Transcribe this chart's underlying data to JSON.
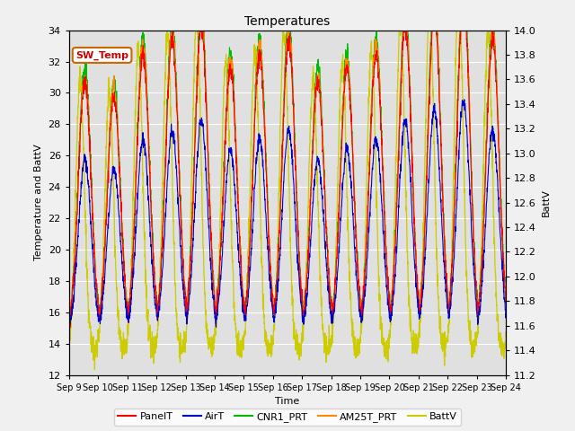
{
  "title": "Temperatures",
  "xlabel": "Time",
  "ylabel_left": "Temperature and BattV",
  "ylabel_right": "BattV",
  "x_tick_labels": [
    "Sep 9",
    "Sep 10",
    "Sep 11",
    "Sep 12",
    "Sep 13",
    "Sep 14",
    "Sep 15",
    "Sep 16",
    "Sep 17",
    "Sep 18",
    "Sep 19",
    "Sep 20",
    "Sep 21",
    "Sep 22",
    "Sep 23",
    "Sep 24"
  ],
  "ylim_left": [
    12,
    34
  ],
  "ylim_right": [
    11.2,
    14.0
  ],
  "yticks_left": [
    12,
    14,
    16,
    18,
    20,
    22,
    24,
    26,
    28,
    30,
    32,
    34
  ],
  "yticks_right": [
    11.2,
    11.4,
    11.6,
    11.8,
    12.0,
    12.2,
    12.4,
    12.6,
    12.8,
    13.0,
    13.2,
    13.4,
    13.6,
    13.8,
    14.0
  ],
  "legend_labels": [
    "PanelT",
    "AirT",
    "CNR1_PRT",
    "AM25T_PRT",
    "BattV"
  ],
  "legend_colors": [
    "#ff0000",
    "#0000cc",
    "#00bb00",
    "#ff8800",
    "#cccc00"
  ],
  "inset_label": "SW_Temp",
  "inset_bg": "#ffffff",
  "inset_edge": "#cc6600",
  "inset_text_color": "#cc0000",
  "figure_bg": "#f0f0f0",
  "plot_bg": "#e0e0e0",
  "grid_color": "#ffffff",
  "n_days": 15,
  "pts_per_day": 144,
  "temp_base": 17.0,
  "temp_night_min": 14.5,
  "temp_day_max_panel": 32.5,
  "temp_day_max_air": 27.0,
  "temp_day_max_cnr": 33.5,
  "temp_day_max_am25": 33.0,
  "batt_day_max": 13.85,
  "batt_night_min": 11.4
}
